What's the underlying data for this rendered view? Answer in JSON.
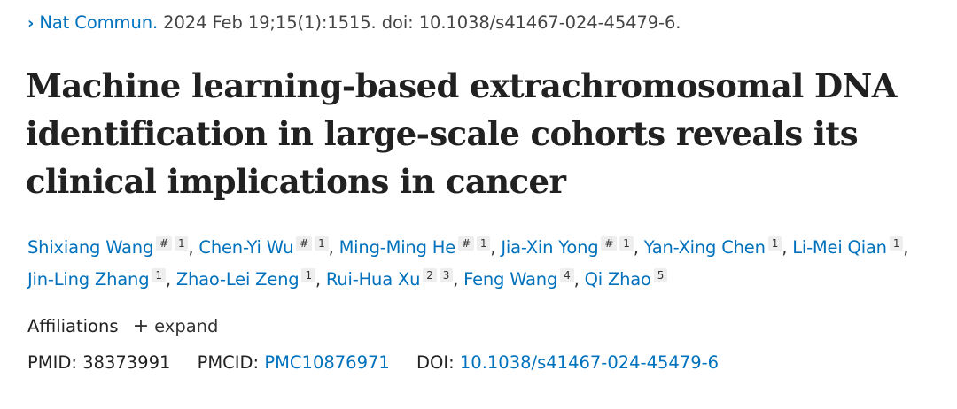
{
  "citation": {
    "chevron": "›",
    "journal": "Nat Commun.",
    "details": "2024 Feb 19;15(1):1515. doi: 10.1038/s41467-024-45479-6."
  },
  "title": "Machine learning-based extrachromosomal DNA identification in large-scale cohorts reveals its clinical implications in cancer",
  "authors": [
    {
      "name": "Shixiang Wang",
      "marks": [
        "#",
        "1"
      ],
      "sep": ","
    },
    {
      "name": "Chen-Yi Wu",
      "marks": [
        "#",
        "1"
      ],
      "sep": ","
    },
    {
      "name": "Ming-Ming He",
      "marks": [
        "#",
        "1"
      ],
      "sep": ","
    },
    {
      "name": "Jia-Xin Yong",
      "marks": [
        "#",
        "1"
      ],
      "sep": ","
    },
    {
      "name": "Yan-Xing Chen",
      "marks": [
        "1"
      ],
      "sep": ","
    },
    {
      "name": "Li-Mei Qian",
      "marks": [
        "1"
      ],
      "sep": ","
    },
    {
      "name": "Jin-Ling Zhang",
      "marks": [
        "1"
      ],
      "sep": ","
    },
    {
      "name": "Zhao-Lei Zeng",
      "marks": [
        "1"
      ],
      "sep": ","
    },
    {
      "name": "Rui-Hua Xu",
      "marks": [
        "2",
        "3"
      ],
      "sep": ","
    },
    {
      "name": "Feng Wang",
      "marks": [
        "4"
      ],
      "sep": ","
    },
    {
      "name": "Qi Zhao",
      "marks": [
        "5"
      ],
      "sep": ""
    }
  ],
  "affiliations": {
    "label": "Affiliations",
    "expand_icon": "+",
    "expand_label": "expand"
  },
  "ids": {
    "pmid_label": "PMID:",
    "pmid": "38373991",
    "pmcid_label": "PMCID:",
    "pmcid": "PMC10876971",
    "doi_label": "DOI:",
    "doi": "10.1038/s41467-024-45479-6"
  },
  "colors": {
    "link": "#0071bc",
    "text": "#212121",
    "badge_bg": "#eeeeee"
  }
}
